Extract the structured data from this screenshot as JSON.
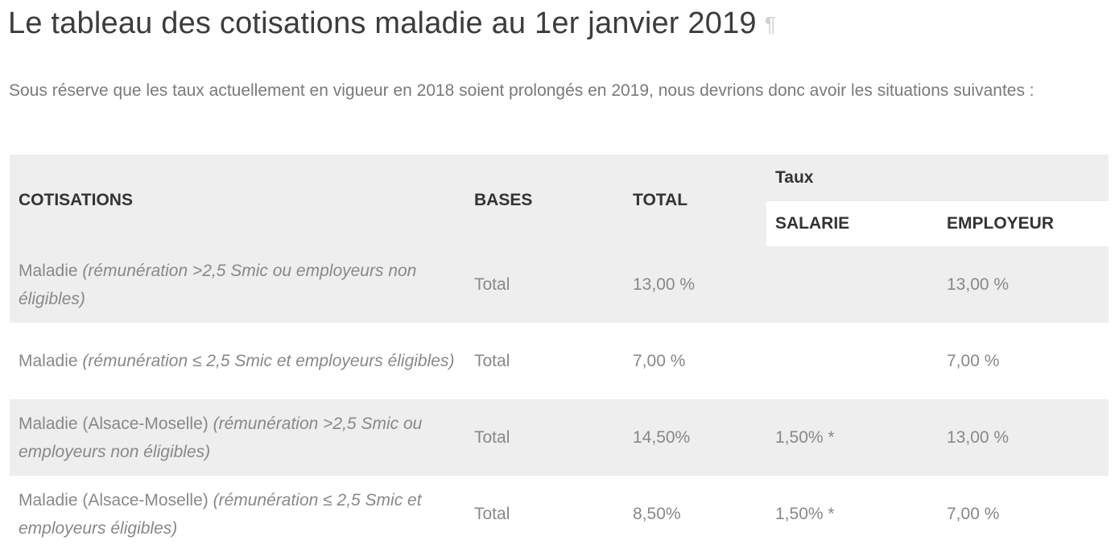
{
  "heading": {
    "title": "Le tableau des cotisations maladie au 1er janvier 2019",
    "pilcrow": "¶"
  },
  "intro": "Sous réserve que les taux actuellement en vigueur en 2018 soient prolongés en 2019, nous devrions donc avoir les situations suivantes :",
  "table": {
    "headers": {
      "cotisations": "COTISATIONS",
      "bases": "BASES",
      "total": "TOTAL",
      "taux": "Taux",
      "salarie": "SALARIE",
      "employeur": "EMPLOYEUR"
    },
    "rows": [
      {
        "label": "Maladie ",
        "label_italic": "(rémunération >2,5 Smic ou employeurs non éligibles)",
        "base": "Total",
        "total": "13,00 %",
        "salarie": "",
        "employeur": "13,00 %"
      },
      {
        "label": "Maladie ",
        "label_italic": "(rémunération ≤ 2,5 Smic et employeurs éligibles)",
        "base": "Total",
        "total": "7,00 %",
        "salarie": "",
        "employeur": "7,00 %"
      },
      {
        "label": "Maladie (Alsace-Moselle) ",
        "label_italic": "(rémunération >2,5 Smic ou employeurs non éligibles)",
        "base": "Total",
        "total": "14,50%",
        "salarie": "1,50% *",
        "employeur": "13,00 %"
      },
      {
        "label": "Maladie (Alsace-Moselle) ",
        "label_italic": "(rémunération ≤ 2,5 Smic et employeurs éligibles)",
        "base": "Total",
        "total": "8,50%",
        "salarie": "1,50% *",
        "employeur": "7,00 %"
      }
    ]
  }
}
